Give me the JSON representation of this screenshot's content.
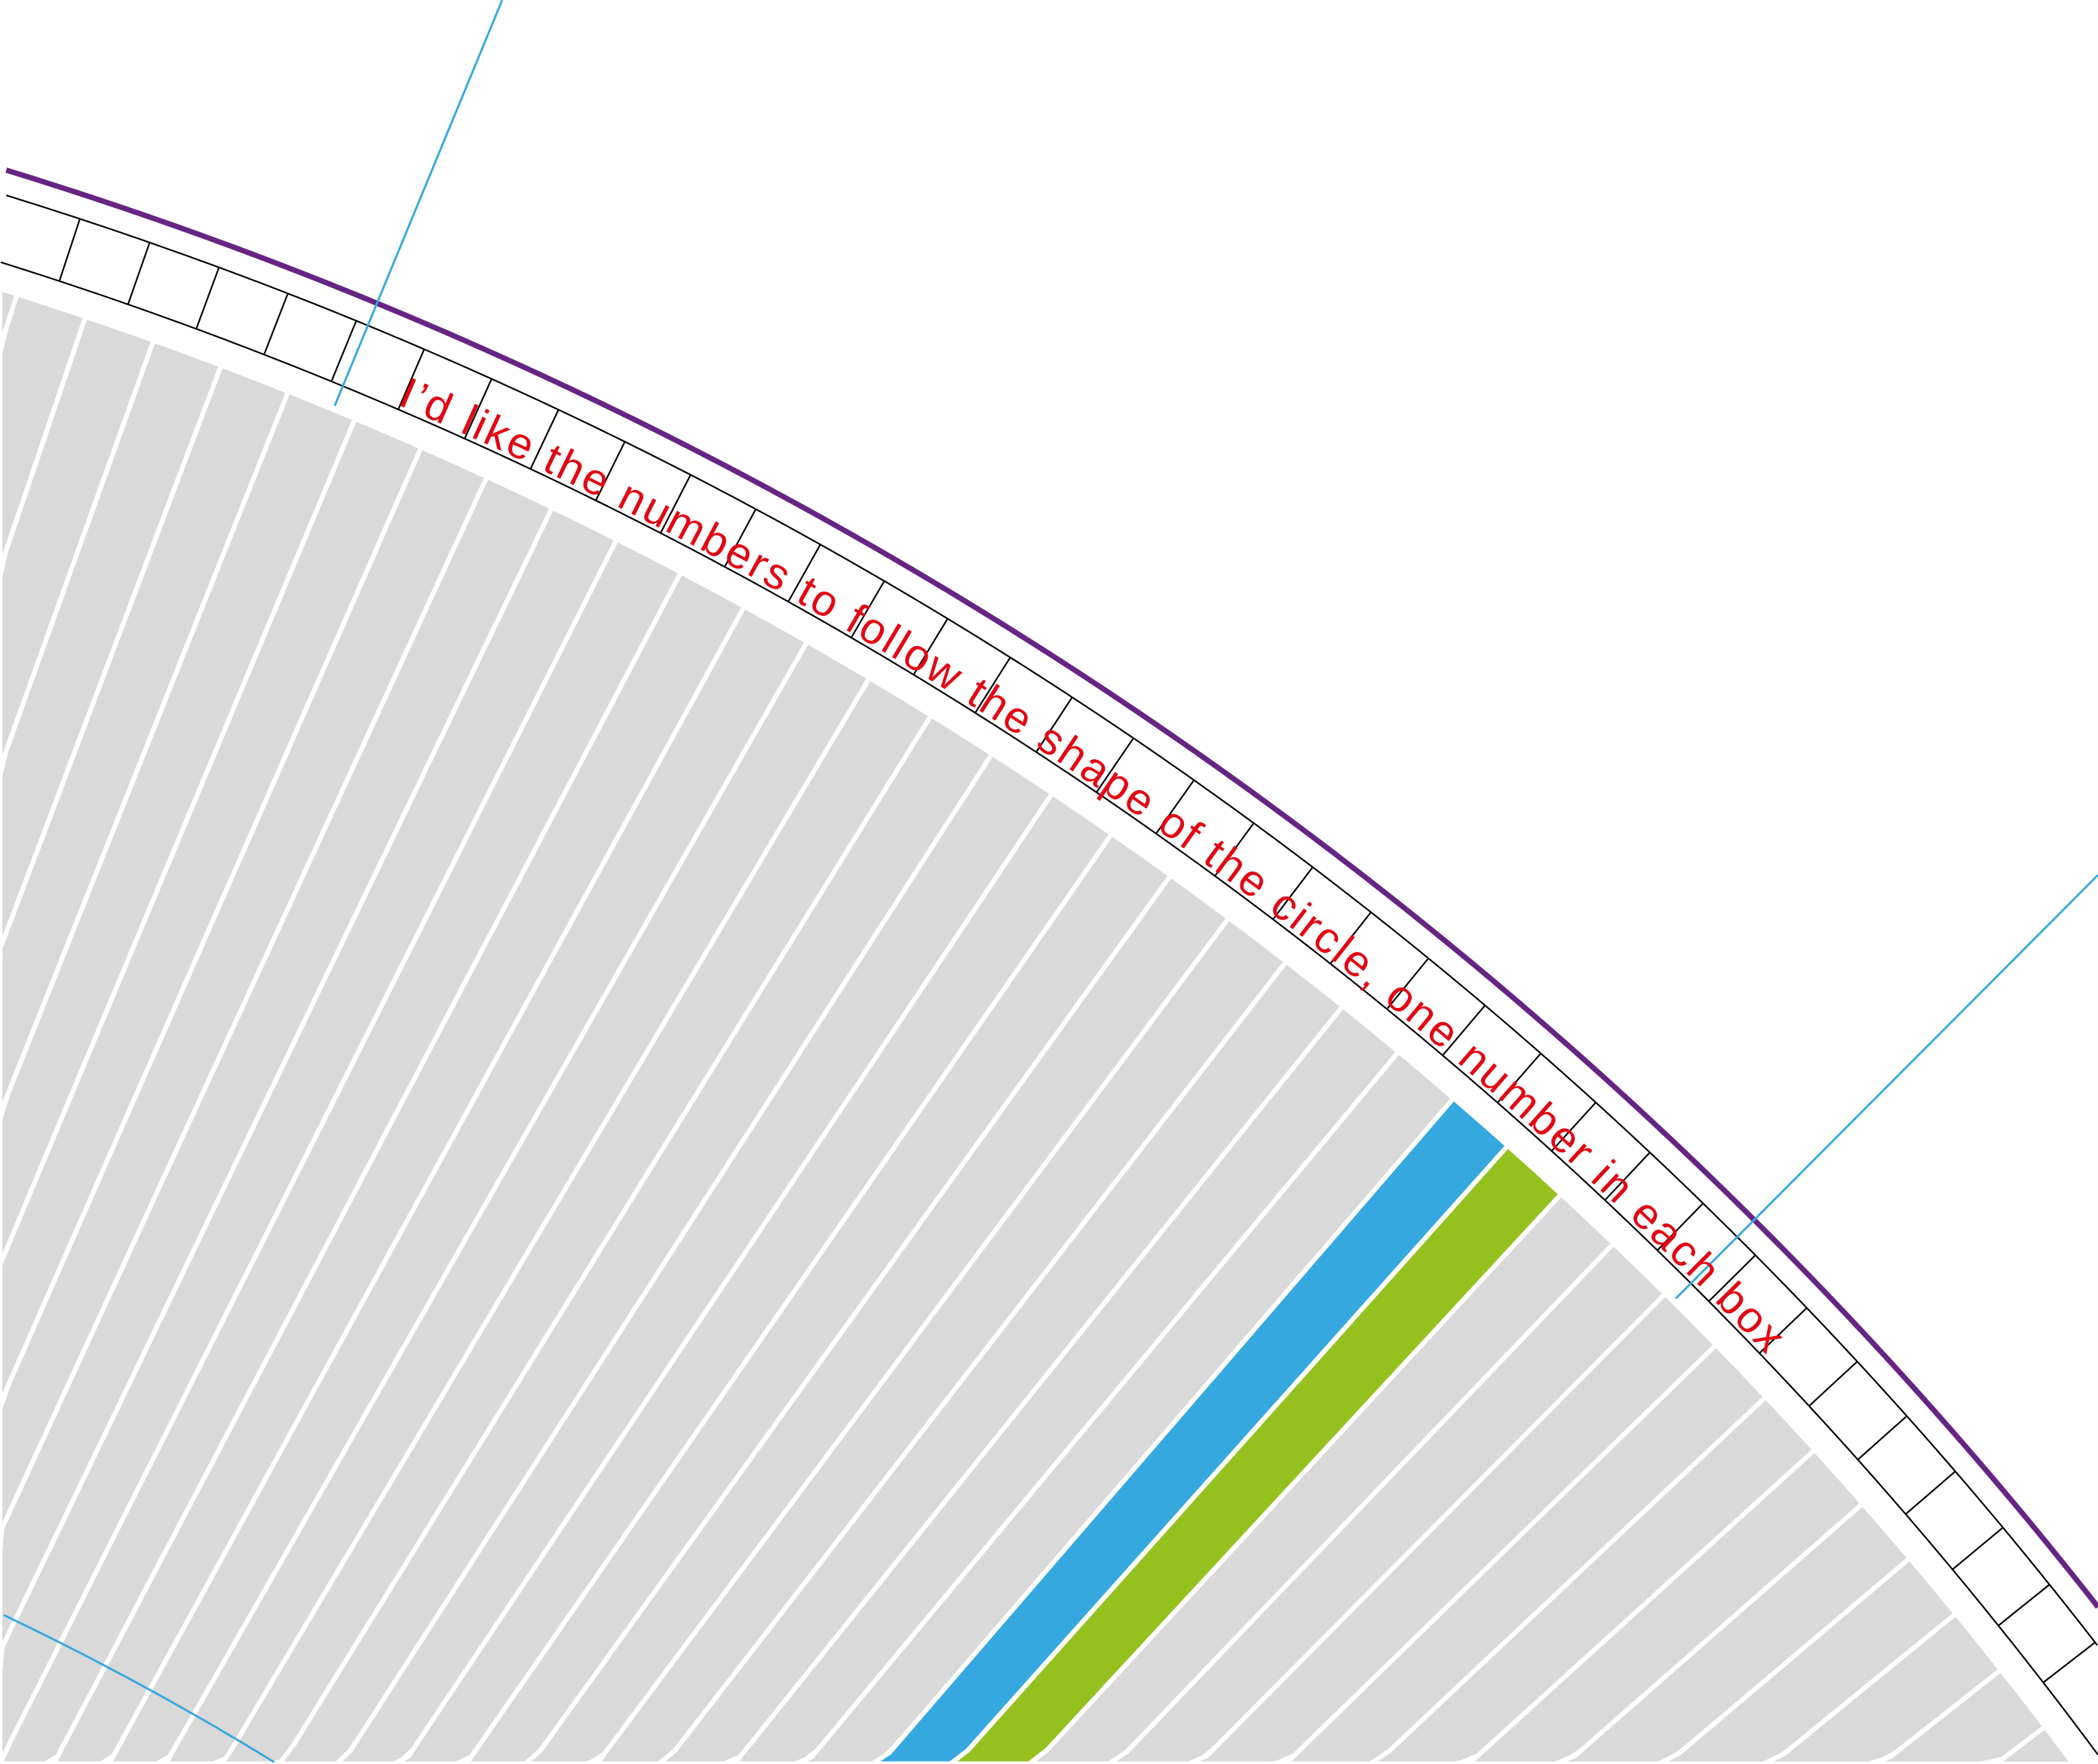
{
  "annotation": {
    "text": "I’d like the numbers to follow the shape of the circle, one number in each box"
  },
  "colors": {
    "bar": "#d9d9d9",
    "bar_gap": "#ffffff",
    "highlight_bar_1": "#35a8e0",
    "highlight_bar_2": "#95c11f",
    "outer_ring": "#662483",
    "guide_lines": "#35a8e0",
    "box_lines": "#000000",
    "annotation_text": "#e30613"
  }
}
